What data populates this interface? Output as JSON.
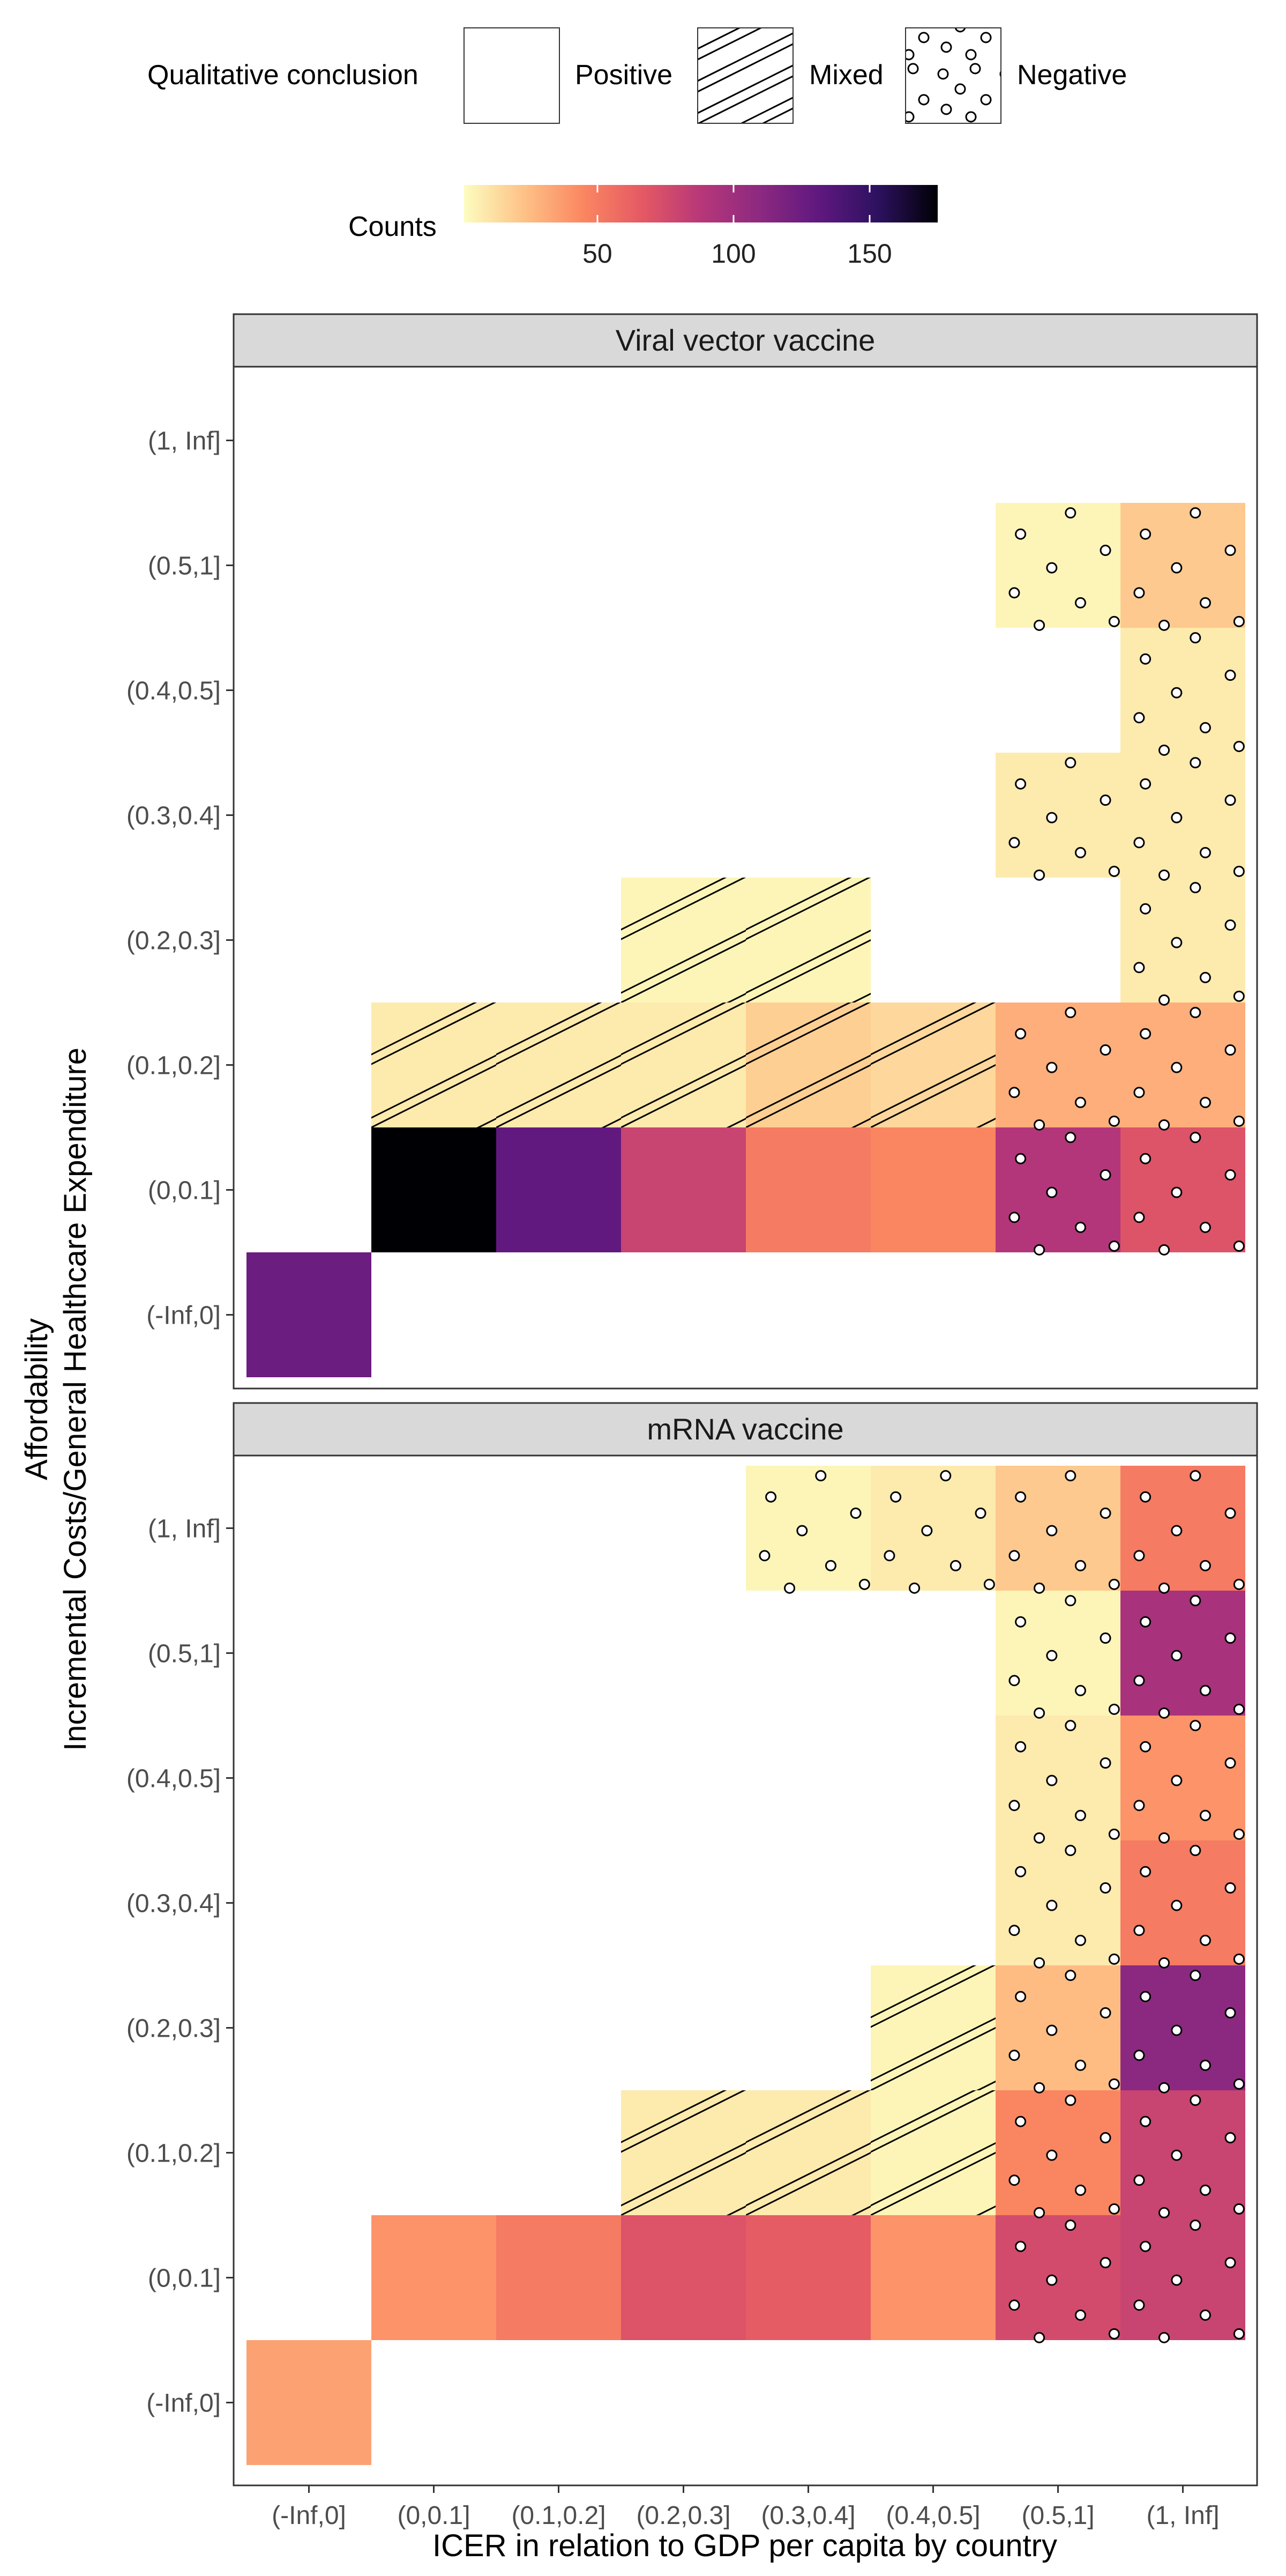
{
  "chart_data": {
    "type": "heatmap",
    "legend": {
      "pattern_title": "Qualitative conclusion",
      "pattern_items": [
        {
          "label": "Positive",
          "pattern": "none"
        },
        {
          "label": "Mixed",
          "pattern": "stripe"
        },
        {
          "label": "Negative",
          "pattern": "circle"
        }
      ],
      "color_title": "Counts",
      "color_ticks": [
        50,
        100,
        150
      ],
      "color_range": [
        1,
        175
      ],
      "palette": [
        "#fcfdbf",
        "#fec287",
        "#fb8761",
        "#e55964",
        "#b73779",
        "#8c2981",
        "#5f187f",
        "#2c115f",
        "#000004"
      ],
      "placement": "top"
    },
    "x_categories": [
      "(-Inf,0]",
      "(0,0.1]",
      "(0.1,0.2]",
      "(0.2,0.3]",
      "(0.3,0.4]",
      "(0.4,0.5]",
      "(0.5,1]",
      "(1, Inf]"
    ],
    "y_categories": [
      "(-Inf,0]",
      "(0,0.1]",
      "(0.1,0.2]",
      "(0.2,0.3]",
      "(0.3,0.4]",
      "(0.4,0.5]",
      "(0.5,1]",
      "(1, Inf]"
    ],
    "xlabel": "ICER in relation to GDP per capita by country",
    "ylabel_line1": "Affordability",
    "ylabel_line2": "Incremental Costs/General Healthcare Expenditure",
    "panels": [
      {
        "title": "Viral vector vaccine",
        "cells": [
          {
            "x": "(-Inf,0]",
            "y": "(-Inf,0]",
            "count": 125,
            "conclusion": "Positive"
          },
          {
            "x": "(0,0.1]",
            "y": "(0,0.1]",
            "count": 175,
            "conclusion": "Positive"
          },
          {
            "x": "(0.1,0.2]",
            "y": "(0,0.1]",
            "count": 130,
            "conclusion": "Positive"
          },
          {
            "x": "(0.2,0.3]",
            "y": "(0,0.1]",
            "count": 80,
            "conclusion": "Positive"
          },
          {
            "x": "(0.3,0.4]",
            "y": "(0,0.1]",
            "count": 50,
            "conclusion": "Positive"
          },
          {
            "x": "(0.4,0.5]",
            "y": "(0,0.1]",
            "count": 45,
            "conclusion": "Positive"
          },
          {
            "x": "(0.5,1]",
            "y": "(0,0.1]",
            "count": 90,
            "conclusion": "Negative"
          },
          {
            "x": "(1, Inf]",
            "y": "(0,0.1]",
            "count": 70,
            "conclusion": "Negative"
          },
          {
            "x": "(0,0.1]",
            "y": "(0.1,0.2]",
            "count": 8,
            "conclusion": "Mixed"
          },
          {
            "x": "(0.1,0.2]",
            "y": "(0.1,0.2]",
            "count": 8,
            "conclusion": "Mixed"
          },
          {
            "x": "(0.2,0.3]",
            "y": "(0.1,0.2]",
            "count": 8,
            "conclusion": "Mixed"
          },
          {
            "x": "(0.3,0.4]",
            "y": "(0.1,0.2]",
            "count": 18,
            "conclusion": "Mixed"
          },
          {
            "x": "(0.4,0.5]",
            "y": "(0.1,0.2]",
            "count": 15,
            "conclusion": "Mixed"
          },
          {
            "x": "(0.5,1]",
            "y": "(0.1,0.2]",
            "count": 30,
            "conclusion": "Negative"
          },
          {
            "x": "(1, Inf]",
            "y": "(0.1,0.2]",
            "count": 30,
            "conclusion": "Negative"
          },
          {
            "x": "(0.2,0.3]",
            "y": "(0.2,0.3]",
            "count": 4,
            "conclusion": "Mixed"
          },
          {
            "x": "(0.3,0.4]",
            "y": "(0.2,0.3]",
            "count": 4,
            "conclusion": "Mixed"
          },
          {
            "x": "(1, Inf]",
            "y": "(0.2,0.3]",
            "count": 8,
            "conclusion": "Negative"
          },
          {
            "x": "(0.5,1]",
            "y": "(0.3,0.4]",
            "count": 8,
            "conclusion": "Negative"
          },
          {
            "x": "(1, Inf]",
            "y": "(0.3,0.4]",
            "count": 8,
            "conclusion": "Negative"
          },
          {
            "x": "(1, Inf]",
            "y": "(0.4,0.5]",
            "count": 8,
            "conclusion": "Negative"
          },
          {
            "x": "(0.5,1]",
            "y": "(0.5,1]",
            "count": 4,
            "conclusion": "Negative"
          },
          {
            "x": "(1, Inf]",
            "y": "(0.5,1]",
            "count": 20,
            "conclusion": "Negative"
          }
        ]
      },
      {
        "title": "mRNA vaccine",
        "cells": [
          {
            "x": "(-Inf,0]",
            "y": "(-Inf,0]",
            "count": 35,
            "conclusion": "Positive"
          },
          {
            "x": "(0,0.1]",
            "y": "(0,0.1]",
            "count": 40,
            "conclusion": "Positive"
          },
          {
            "x": "(0.1,0.2]",
            "y": "(0,0.1]",
            "count": 50,
            "conclusion": "Positive"
          },
          {
            "x": "(0.2,0.3]",
            "y": "(0,0.1]",
            "count": 70,
            "conclusion": "Positive"
          },
          {
            "x": "(0.3,0.4]",
            "y": "(0,0.1]",
            "count": 65,
            "conclusion": "Positive"
          },
          {
            "x": "(0.4,0.5]",
            "y": "(0,0.1]",
            "count": 40,
            "conclusion": "Positive"
          },
          {
            "x": "(0.5,1]",
            "y": "(0,0.1]",
            "count": 75,
            "conclusion": "Negative"
          },
          {
            "x": "(1, Inf]",
            "y": "(0,0.1]",
            "count": 80,
            "conclusion": "Negative"
          },
          {
            "x": "(0.2,0.3]",
            "y": "(0.1,0.2]",
            "count": 8,
            "conclusion": "Mixed"
          },
          {
            "x": "(0.3,0.4]",
            "y": "(0.1,0.2]",
            "count": 8,
            "conclusion": "Mixed"
          },
          {
            "x": "(0.4,0.5]",
            "y": "(0.1,0.2]",
            "count": 4,
            "conclusion": "Mixed"
          },
          {
            "x": "(0.5,1]",
            "y": "(0.1,0.2]",
            "count": 45,
            "conclusion": "Negative"
          },
          {
            "x": "(1, Inf]",
            "y": "(0.1,0.2]",
            "count": 80,
            "conclusion": "Negative"
          },
          {
            "x": "(0.4,0.5]",
            "y": "(0.2,0.3]",
            "count": 4,
            "conclusion": "Mixed"
          },
          {
            "x": "(0.5,1]",
            "y": "(0.2,0.3]",
            "count": 25,
            "conclusion": "Negative"
          },
          {
            "x": "(1, Inf]",
            "y": "(0.2,0.3]",
            "count": 110,
            "conclusion": "Negative"
          },
          {
            "x": "(0.5,1]",
            "y": "(0.3,0.4]",
            "count": 8,
            "conclusion": "Negative"
          },
          {
            "x": "(1, Inf]",
            "y": "(0.3,0.4]",
            "count": 50,
            "conclusion": "Negative"
          },
          {
            "x": "(0.5,1]",
            "y": "(0.4,0.5]",
            "count": 8,
            "conclusion": "Negative"
          },
          {
            "x": "(1, Inf]",
            "y": "(0.4,0.5]",
            "count": 40,
            "conclusion": "Negative"
          },
          {
            "x": "(0.5,1]",
            "y": "(0.5,1]",
            "count": 4,
            "conclusion": "Negative"
          },
          {
            "x": "(1, Inf]",
            "y": "(0.5,1]",
            "count": 95,
            "conclusion": "Negative"
          },
          {
            "x": "(0.3,0.4]",
            "y": "(1, Inf]",
            "count": 4,
            "conclusion": "Negative"
          },
          {
            "x": "(0.4,0.5]",
            "y": "(1, Inf]",
            "count": 8,
            "conclusion": "Negative"
          },
          {
            "x": "(0.5,1]",
            "y": "(1, Inf]",
            "count": 20,
            "conclusion": "Negative"
          },
          {
            "x": "(1, Inf]",
            "y": "(1, Inf]",
            "count": 50,
            "conclusion": "Negative"
          }
        ]
      }
    ]
  }
}
